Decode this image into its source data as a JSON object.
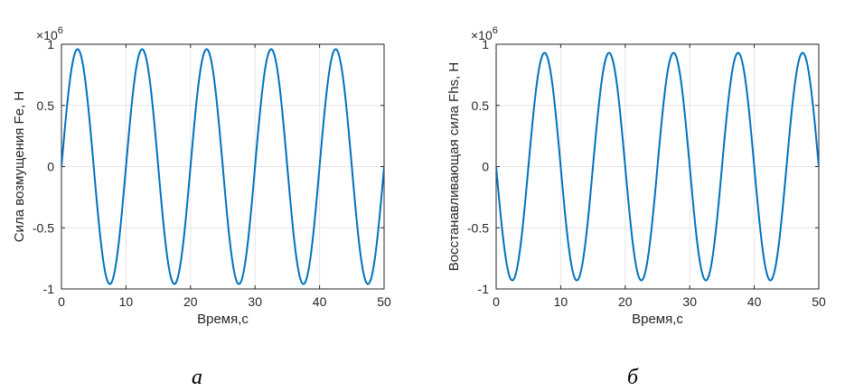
{
  "chart_data": [
    {
      "type": "line",
      "panel_label": "а",
      "xlabel": "Время,с",
      "ylabel": "Сила возмущения Fe, Н",
      "y_exponent_label": "×10",
      "y_exponent_power": "6",
      "xlim": [
        0,
        50
      ],
      "ylim": [
        -1,
        1
      ],
      "xticks": [
        0,
        10,
        20,
        30,
        40,
        50
      ],
      "xtick_labels": [
        "0",
        "10",
        "20",
        "30",
        "40",
        "50"
      ],
      "yticks": [
        -1,
        -0.5,
        0,
        0.5,
        1
      ],
      "ytick_labels": [
        "-1",
        "-0.5",
        "0",
        "0.5",
        "1"
      ],
      "grid": true,
      "line_color": "#0072bd",
      "series_function": {
        "form": "amplitude*sin(2*pi*x/period + phase)",
        "amplitude": 0.96,
        "period": 10,
        "phase": 0
      }
    },
    {
      "type": "line",
      "panel_label": "б",
      "xlabel": "Время,с",
      "ylabel": "Восстанавливающая сила Fhs, Н",
      "y_exponent_label": "×10",
      "y_exponent_power": "6",
      "xlim": [
        0,
        50
      ],
      "ylim": [
        -1,
        1
      ],
      "xticks": [
        0,
        10,
        20,
        30,
        40,
        50
      ],
      "xtick_labels": [
        "0",
        "10",
        "20",
        "30",
        "40",
        "50"
      ],
      "yticks": [
        -1,
        -0.5,
        0,
        0.5,
        1
      ],
      "ytick_labels": [
        "-1",
        "-0.5",
        "0",
        "0.5",
        "1"
      ],
      "grid": true,
      "line_color": "#0072bd",
      "series_function": {
        "form": "amplitude*sin(2*pi*x/period + phase)",
        "amplitude": 0.93,
        "period": 10,
        "phase": 3.14159
      }
    }
  ]
}
